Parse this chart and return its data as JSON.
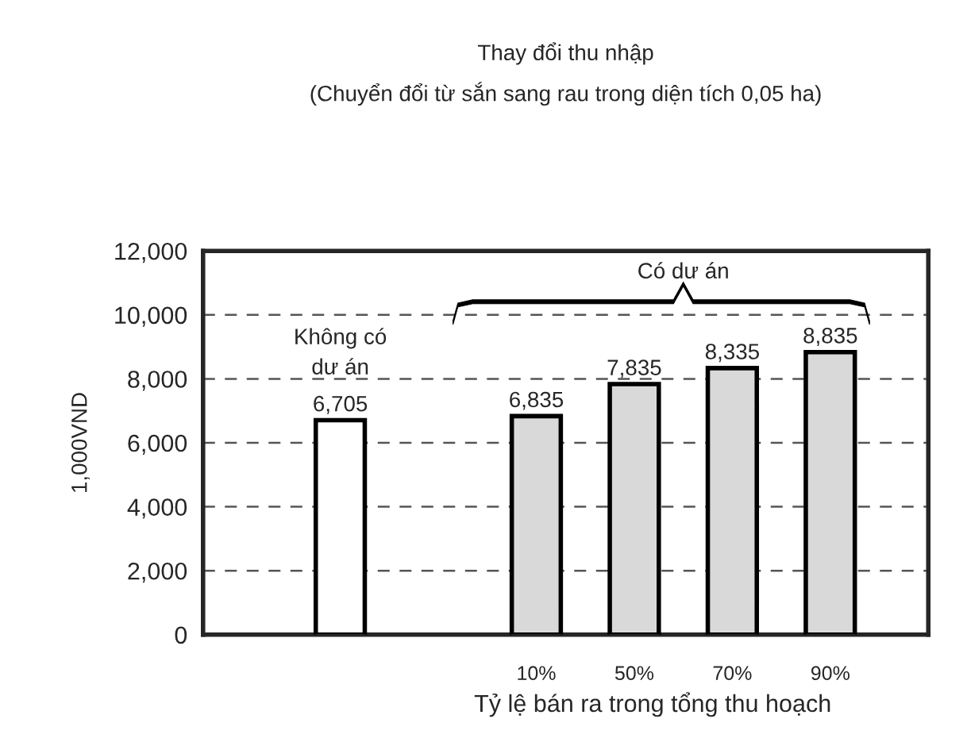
{
  "chart_data": {
    "type": "bar",
    "title": "Thay đổi thu nhập\n(Chuyển đổi từ sắn sang rau trong diện tích 0,05 ha)",
    "xlabel": "Tỷ lệ bán ra trong tổng thu hoạch",
    "ylabel": "1,000VND",
    "categories": [
      null,
      null,
      "10%",
      "50%",
      "70%",
      "90%"
    ],
    "values": [
      6705,
      null,
      6835,
      7835,
      8335,
      8835
    ],
    "colors": [
      "#ffffff",
      "#ffffff",
      "#d9d9d9",
      "#d9d9d9",
      "#d9d9d9",
      "#d9d9d9"
    ],
    "value_labels": [
      "6,705",
      null,
      "6,835",
      "7,835",
      "8,335",
      "8,835"
    ],
    "ylim": [
      0,
      12000
    ],
    "yticks": [
      0,
      {
        "value": 2000,
        "label": "2,000"
      },
      {
        "value": 4000,
        "label": "4,000"
      },
      {
        "value": 6000,
        "label": "6,000"
      },
      {
        "value": 8000,
        "label": "8,000"
      },
      {
        "value": 10000,
        "label": "10,000"
      },
      {
        "value": 12000,
        "label": "12,000"
      }
    ],
    "grid": "y",
    "legend": false,
    "annotations": [
      "Không có\ndư án",
      "Có dư án"
    ]
  }
}
